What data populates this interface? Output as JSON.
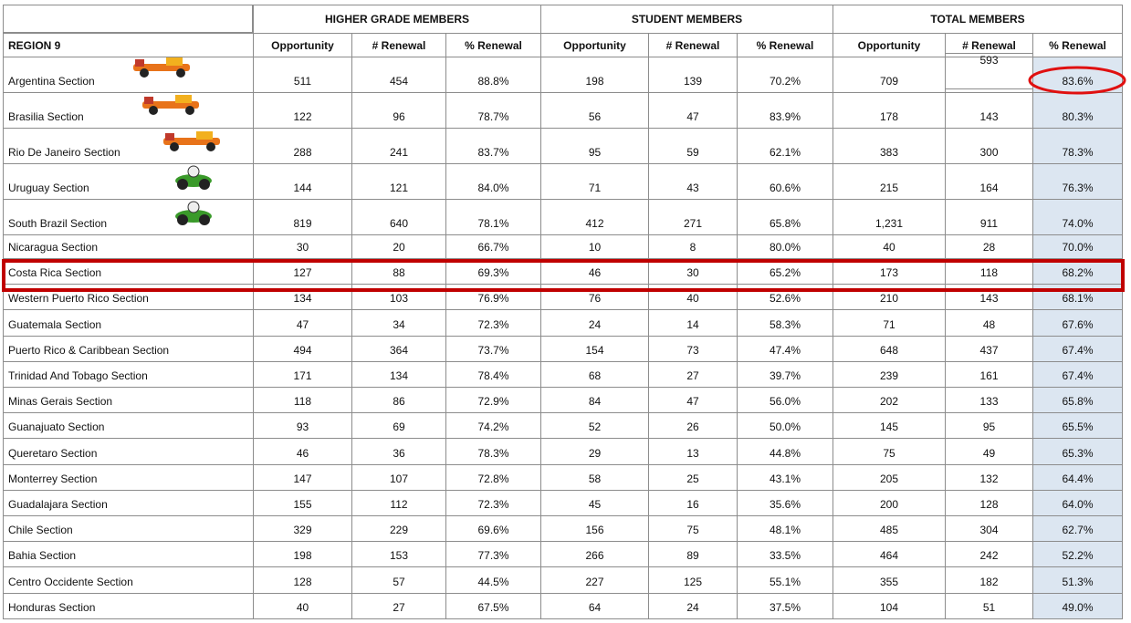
{
  "table": {
    "groups": [
      "HIGHER GRADE MEMBERS",
      "STUDENT MEMBERS",
      "TOTAL MEMBERS"
    ],
    "header": [
      "REGION 9",
      "Opportunity",
      "# Renewal",
      "% Renewal",
      "Opportunity",
      "# Renewal",
      "% Renewal",
      "Opportunity",
      "# Renewal",
      "% Renewal"
    ],
    "rows": [
      [
        "Argentina Section",
        "511",
        "454",
        "88.8%",
        "198",
        "139",
        "70.2%",
        "709",
        "593",
        "83.6%"
      ],
      [
        "Brasilia Section",
        "122",
        "96",
        "78.7%",
        "56",
        "47",
        "83.9%",
        "178",
        "143",
        "80.3%"
      ],
      [
        "Rio De Janeiro Section",
        "288",
        "241",
        "83.7%",
        "95",
        "59",
        "62.1%",
        "383",
        "300",
        "78.3%"
      ],
      [
        "Uruguay Section",
        "144",
        "121",
        "84.0%",
        "71",
        "43",
        "60.6%",
        "215",
        "164",
        "76.3%"
      ],
      [
        "South Brazil Section",
        "819",
        "640",
        "78.1%",
        "412",
        "271",
        "65.8%",
        "1,231",
        "911",
        "74.0%"
      ],
      [
        "Nicaragua Section",
        "30",
        "20",
        "66.7%",
        "10",
        "8",
        "80.0%",
        "40",
        "28",
        "70.0%"
      ],
      [
        "Costa Rica Section",
        "127",
        "88",
        "69.3%",
        "46",
        "30",
        "65.2%",
        "173",
        "118",
        "68.2%"
      ],
      [
        "Western Puerto Rico Section",
        "134",
        "103",
        "76.9%",
        "76",
        "40",
        "52.6%",
        "210",
        "143",
        "68.1%"
      ],
      [
        "Guatemala Section",
        "47",
        "34",
        "72.3%",
        "24",
        "14",
        "58.3%",
        "71",
        "48",
        "67.6%"
      ],
      [
        "Puerto Rico & Caribbean Section",
        "494",
        "364",
        "73.7%",
        "154",
        "73",
        "47.4%",
        "648",
        "437",
        "67.4%"
      ],
      [
        "Trinidad And Tobago Section",
        "171",
        "134",
        "78.4%",
        "68",
        "27",
        "39.7%",
        "239",
        "161",
        "67.4%"
      ],
      [
        "Minas Gerais Section",
        "118",
        "86",
        "72.9%",
        "84",
        "47",
        "56.0%",
        "202",
        "133",
        "65.8%"
      ],
      [
        "Guanajuato Section",
        "93",
        "69",
        "74.2%",
        "52",
        "26",
        "50.0%",
        "145",
        "95",
        "65.5%"
      ],
      [
        "Queretaro Section",
        "46",
        "36",
        "78.3%",
        "29",
        "13",
        "44.8%",
        "75",
        "49",
        "65.3%"
      ],
      [
        "Monterrey Section",
        "147",
        "107",
        "72.8%",
        "58",
        "25",
        "43.1%",
        "205",
        "132",
        "64.4%"
      ],
      [
        "Guadalajara Section",
        "155",
        "112",
        "72.3%",
        "45",
        "16",
        "35.6%",
        "200",
        "128",
        "64.0%"
      ],
      [
        "Chile Section",
        "329",
        "229",
        "69.6%",
        "156",
        "75",
        "48.1%",
        "485",
        "304",
        "62.7%"
      ],
      [
        "Bahia Section",
        "198",
        "153",
        "77.3%",
        "266",
        "89",
        "33.5%",
        "464",
        "242",
        "52.2%"
      ],
      [
        "Centro Occidente Section",
        "128",
        "57",
        "44.5%",
        "227",
        "125",
        "55.1%",
        "355",
        "182",
        "51.3%"
      ],
      [
        "Honduras Section",
        "40",
        "27",
        "67.5%",
        "64",
        "24",
        "37.5%",
        "104",
        "51",
        "49.0%"
      ]
    ]
  }
}
